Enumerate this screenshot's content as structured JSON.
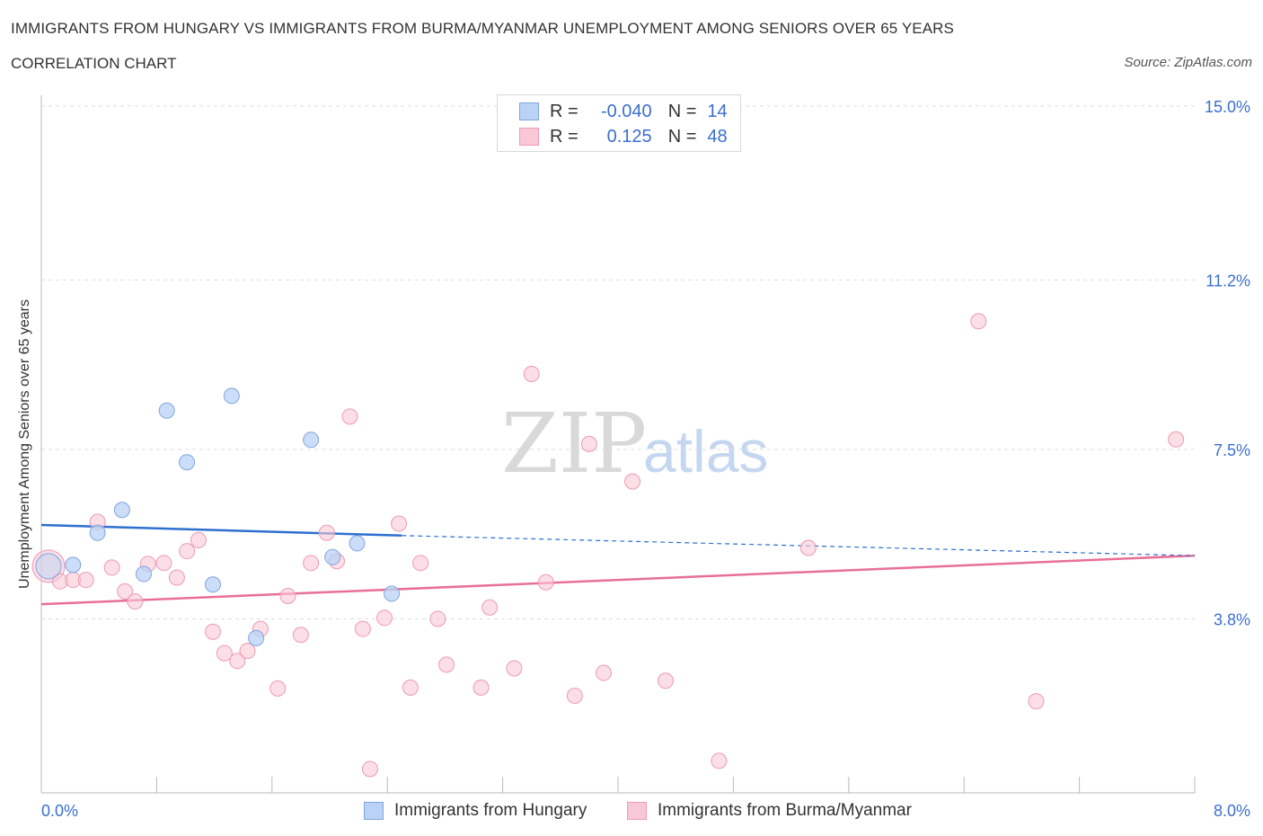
{
  "title": "IMMIGRANTS FROM HUNGARY VS IMMIGRANTS FROM BURMA/MYANMAR UNEMPLOYMENT AMONG SENIORS OVER 65 YEARS",
  "subtitle": "CORRELATION CHART",
  "source": "Source: ZipAtlas.com",
  "watermark": {
    "zip": "ZIP",
    "atlas": "atlas"
  },
  "legend": {
    "r_label": "R =",
    "n_label": "N =",
    "series": [
      {
        "name": "Immigrants from Hungary",
        "r": "-0.040",
        "n": "14"
      },
      {
        "name": "Immigrants from Burma/Myanmar",
        "r": "0.125",
        "n": "48"
      }
    ]
  },
  "colors": {
    "hungary_fill": "#b9d2f5",
    "hungary_stroke": "#7fa6e0",
    "hungary_line": "#2e6fd0",
    "burma_fill": "#f8c8d6",
    "burma_stroke": "#ee9ab5",
    "burma_line": "#e86f98",
    "axis_text": "#3a6fd1",
    "grid": "#dddddd"
  },
  "chart_data": {
    "type": "scatter",
    "xlabel": "",
    "ylabel": "Unemployment Among Seniors over 65 years",
    "xlim": [
      0,
      8.0
    ],
    "ylim": [
      0,
      15.0
    ],
    "x_tick_labels": [
      "0.0%",
      "8.0%"
    ],
    "y_ticks": [
      3.8,
      7.5,
      11.2,
      15.0
    ],
    "y_tick_labels": [
      "3.8%",
      "7.5%",
      "11.2%",
      "15.0%"
    ],
    "grid": true,
    "legend_position": "top-center",
    "series": [
      {
        "name": "Immigrants from Hungary",
        "r": -0.04,
        "n": 14,
        "points": [
          {
            "x": 0.05,
            "y": 4.95,
            "big": true
          },
          {
            "x": 0.22,
            "y": 4.98
          },
          {
            "x": 0.39,
            "y": 5.68
          },
          {
            "x": 0.56,
            "y": 6.18
          },
          {
            "x": 0.71,
            "y": 4.78
          },
          {
            "x": 0.87,
            "y": 8.35
          },
          {
            "x": 1.01,
            "y": 7.22
          },
          {
            "x": 1.19,
            "y": 4.55
          },
          {
            "x": 1.32,
            "y": 8.67
          },
          {
            "x": 1.49,
            "y": 3.38
          },
          {
            "x": 1.87,
            "y": 7.71
          },
          {
            "x": 2.02,
            "y": 5.15
          },
          {
            "x": 2.19,
            "y": 5.45
          },
          {
            "x": 2.43,
            "y": 4.35
          }
        ],
        "trend": {
          "x": [
            0.0,
            2.5
          ],
          "y": [
            5.85,
            5.62
          ],
          "dashed_to": [
            8.0,
            5.18
          ]
        }
      },
      {
        "name": "Immigrants from Burma/Myanmar",
        "r": 0.125,
        "n": 48,
        "points": [
          {
            "x": 0.05,
            "y": 4.95,
            "big": true
          },
          {
            "x": 0.13,
            "y": 4.62
          },
          {
            "x": 0.22,
            "y": 4.65
          },
          {
            "x": 0.31,
            "y": 4.65
          },
          {
            "x": 0.39,
            "y": 5.92
          },
          {
            "x": 0.49,
            "y": 4.92
          },
          {
            "x": 0.58,
            "y": 4.4
          },
          {
            "x": 0.65,
            "y": 4.18
          },
          {
            "x": 0.74,
            "y": 5.0
          },
          {
            "x": 0.85,
            "y": 5.02
          },
          {
            "x": 0.94,
            "y": 4.7
          },
          {
            "x": 1.01,
            "y": 5.28
          },
          {
            "x": 1.09,
            "y": 5.52
          },
          {
            "x": 1.19,
            "y": 3.52
          },
          {
            "x": 1.27,
            "y": 3.05
          },
          {
            "x": 1.36,
            "y": 2.88
          },
          {
            "x": 1.43,
            "y": 3.1
          },
          {
            "x": 1.52,
            "y": 3.58
          },
          {
            "x": 1.64,
            "y": 2.28
          },
          {
            "x": 1.71,
            "y": 4.3
          },
          {
            "x": 1.8,
            "y": 3.45
          },
          {
            "x": 1.87,
            "y": 5.02
          },
          {
            "x": 1.98,
            "y": 5.68
          },
          {
            "x": 2.05,
            "y": 5.06
          },
          {
            "x": 2.14,
            "y": 8.22
          },
          {
            "x": 2.23,
            "y": 3.58
          },
          {
            "x": 2.28,
            "y": 0.52
          },
          {
            "x": 2.38,
            "y": 3.82
          },
          {
            "x": 2.48,
            "y": 5.88
          },
          {
            "x": 2.56,
            "y": 2.3
          },
          {
            "x": 2.63,
            "y": 5.02
          },
          {
            "x": 2.75,
            "y": 3.8
          },
          {
            "x": 2.81,
            "y": 2.8
          },
          {
            "x": 3.05,
            "y": 2.3
          },
          {
            "x": 3.11,
            "y": 4.05
          },
          {
            "x": 3.28,
            "y": 2.72
          },
          {
            "x": 3.4,
            "y": 9.15
          },
          {
            "x": 3.5,
            "y": 4.6
          },
          {
            "x": 3.7,
            "y": 2.12
          },
          {
            "x": 3.8,
            "y": 7.62
          },
          {
            "x": 3.9,
            "y": 2.62
          },
          {
            "x": 4.1,
            "y": 6.8
          },
          {
            "x": 4.33,
            "y": 2.45
          },
          {
            "x": 4.7,
            "y": 0.7
          },
          {
            "x": 5.32,
            "y": 5.35
          },
          {
            "x": 6.5,
            "y": 10.3
          },
          {
            "x": 6.9,
            "y": 2.0
          },
          {
            "x": 7.87,
            "y": 7.72
          }
        ],
        "trend": {
          "x": [
            0.0,
            8.0
          ],
          "y": [
            4.12,
            5.18
          ]
        }
      }
    ]
  }
}
